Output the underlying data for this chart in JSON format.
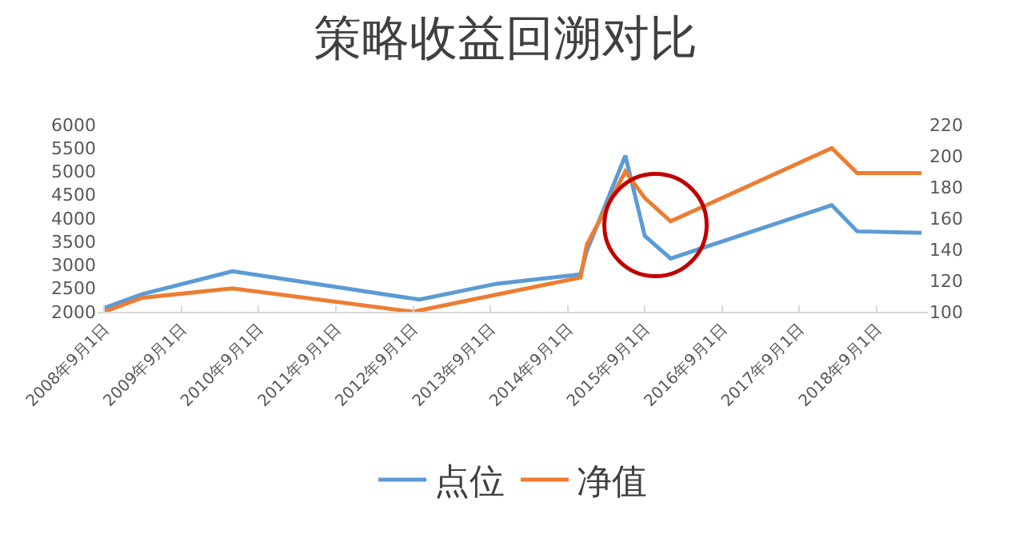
{
  "chart_data": {
    "type": "line",
    "title": "策略收益回溯对比",
    "x": [
      "2008-09-01",
      "2009-03-01",
      "2010-05-01",
      "2012-10-01",
      "2013-10-01",
      "2014-11-01",
      "2014-12-01",
      "2015-06-01",
      "2015-09-01",
      "2016-01-01",
      "2018-02-01",
      "2018-06-01",
      "2019-04-01"
    ],
    "series": [
      {
        "name": "点位",
        "color": "#5b9bd5",
        "values": [
          2080,
          2380,
          2865,
          2260,
          2600,
          2800,
          3300,
          5340,
          3620,
          3140,
          4280,
          3720,
          3690
        ]
      },
      {
        "name": "净值",
        "color": "#ed7d31",
        "axis": "y2",
        "x": [
          "2008-09-01",
          "2009-03-01",
          "2010-05-01",
          "2012-09-01",
          "2013-10-01",
          "2014-11-01",
          "2014-12-01",
          "2015-06-01",
          "2015-09-01",
          "2016-01-01",
          "2018-02-01",
          "2018-06-01",
          "2019-04-01"
        ],
        "values": [
          100,
          109,
          115,
          100,
          111,
          122,
          143,
          190,
          173,
          158,
          205,
          189,
          189
        ]
      }
    ],
    "xlim": [
      "2008-08-01",
      "2019-05-01"
    ],
    "xticks": [
      {
        "value": "2008-09-01",
        "label": "2008年9月1日"
      },
      {
        "value": "2009-09-01",
        "label": "2009年9月1日"
      },
      {
        "value": "2010-09-01",
        "label": "2010年9月1日"
      },
      {
        "value": "2011-09-01",
        "label": "2011年9月1日"
      },
      {
        "value": "2012-09-01",
        "label": "2012年9月1日"
      },
      {
        "value": "2013-09-01",
        "label": "2013年9月1日"
      },
      {
        "value": "2014-09-01",
        "label": "2014年9月1日"
      },
      {
        "value": "2015-09-01",
        "label": "2015年9月1日"
      },
      {
        "value": "2016-09-01",
        "label": "2016年9月1日"
      },
      {
        "value": "2017-09-01",
        "label": "2017年9月1日"
      },
      {
        "value": "2018-09-01",
        "label": "2018年9月1日"
      }
    ],
    "ylim": [
      2000,
      6000
    ],
    "yticks": [
      2000,
      2500,
      3000,
      3500,
      4000,
      4500,
      5000,
      5500,
      6000
    ],
    "y2lim": [
      100,
      220
    ],
    "y2ticks": [
      100,
      120,
      140,
      160,
      180,
      200,
      220
    ],
    "grid": false,
    "legend": "bottom",
    "line_style": "solid",
    "marker": "none"
  }
}
